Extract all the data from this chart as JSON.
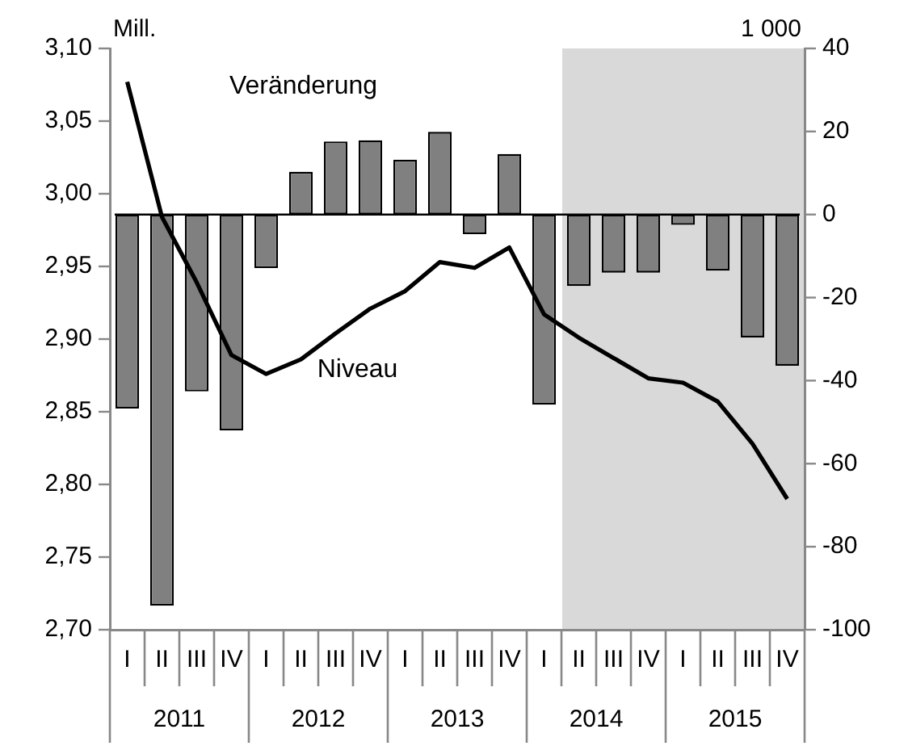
{
  "chart_data": {
    "type": "bar",
    "categories": [
      "I",
      "II",
      "III",
      "IV",
      "I",
      "II",
      "III",
      "IV",
      "I",
      "II",
      "III",
      "IV",
      "I",
      "II",
      "III",
      "IV",
      "I",
      "II",
      "III",
      "IV"
    ],
    "ylabel": "Mill.",
    "y2label": "1 000",
    "ylim": [
      2.7,
      3.1
    ],
    "yticks": [
      {
        "value": 2.7,
        "label": "2,70"
      },
      {
        "value": 2.75,
        "label": "2,75"
      },
      {
        "value": 2.8,
        "label": "2,80"
      },
      {
        "value": 2.85,
        "label": "2,85"
      },
      {
        "value": 2.9,
        "label": "2,90"
      },
      {
        "value": 2.95,
        "label": "2,95"
      },
      {
        "value": 3.0,
        "label": "3,00"
      },
      {
        "value": 3.05,
        "label": "3,05"
      },
      {
        "value": 3.1,
        "label": "3,10"
      }
    ],
    "y2lim": [
      -100,
      40
    ],
    "y2ticks": [
      -100,
      -80,
      -60,
      -40,
      -20,
      0,
      20,
      40
    ],
    "series": [
      {
        "name": "Veränderung",
        "axis": "y2",
        "color": "#808080",
        "values": [
          -46.7,
          -94.2,
          -42.6,
          -52.0,
          -12.9,
          10.3,
          17.6,
          17.9,
          13.2,
          19.9,
          -4.7,
          14.6,
          -45.8,
          -17.2,
          -14.0,
          -14.0,
          -2.5,
          -13.5,
          -29.6,
          -36.4
        ]
      },
      {
        "name": "Niveau",
        "type": "line",
        "color": "#000000",
        "values": [
          3.077,
          2.984,
          2.939,
          2.889,
          2.876,
          2.886,
          2.904,
          2.921,
          2.933,
          2.953,
          2.949,
          2.963,
          2.917,
          2.901,
          2.887,
          2.873,
          2.87,
          2.857,
          2.828,
          2.79
        ]
      }
    ],
    "ref_lines": [
      {
        "axis": "y2",
        "value": 0,
        "color": "#000000"
      }
    ],
    "annotations": [
      "2011",
      "2012",
      "2013",
      "2014",
      "2015"
    ],
    "grid": false,
    "legend": false,
    "marker": "none"
  }
}
